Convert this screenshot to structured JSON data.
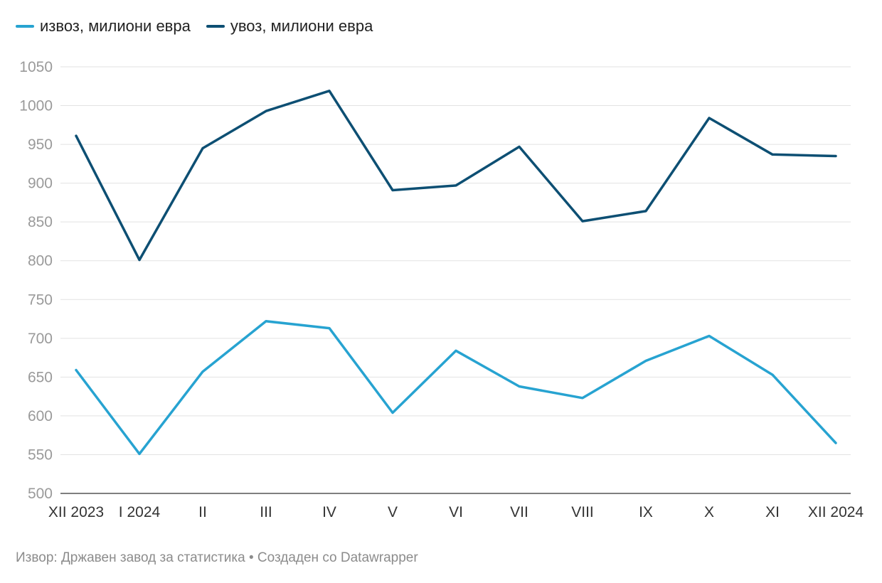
{
  "chart_data": {
    "type": "line",
    "title": "",
    "xlabel": "",
    "ylabel": "",
    "categories": [
      "XII 2023",
      "I 2024",
      "II",
      "III",
      "IV",
      "V",
      "VI",
      "VII",
      "VIII",
      "IX",
      "X",
      "XI",
      "XII 2024"
    ],
    "series": [
      {
        "name": "извоз, милиони евра",
        "color": "#27a3d1",
        "values": [
          659,
          551,
          657,
          722,
          713,
          604,
          684,
          638,
          623,
          671,
          703,
          653,
          565
        ]
      },
      {
        "name": "увоз, милиони евра",
        "color": "#0d4f73",
        "values": [
          961,
          801,
          945,
          993,
          1019,
          891,
          897,
          947,
          851,
          864,
          984,
          937,
          935
        ]
      }
    ],
    "ylim": [
      500,
      1050
    ],
    "yticks": [
      500,
      550,
      600,
      650,
      700,
      750,
      800,
      850,
      900,
      950,
      1000,
      1050
    ],
    "grid": true,
    "legend_position": "top-left"
  },
  "footer": {
    "source_text": "Извор: Државен завод за статистика • Создаден со Datawrapper"
  }
}
